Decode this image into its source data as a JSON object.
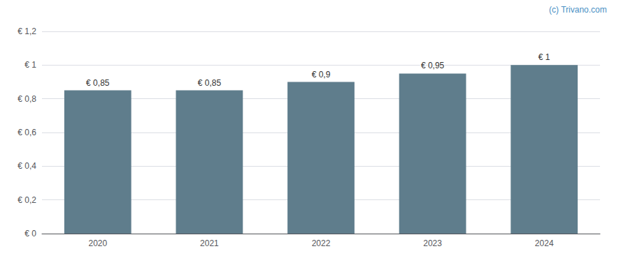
{
  "chart_data": {
    "type": "bar",
    "categories": [
      "2020",
      "2021",
      "2022",
      "2023",
      "2024"
    ],
    "values": [
      0.85,
      0.85,
      0.9,
      0.95,
      1.0
    ],
    "value_labels": [
      "€ 0,85",
      "€ 0,85",
      "€ 0,9",
      "€ 0,95",
      "€ 1"
    ],
    "data_labels": true,
    "color": "#5f7d8c",
    "ylim": [
      0,
      1.2
    ],
    "yticks": [
      {
        "value": 0,
        "label": "€ 0"
      },
      {
        "value": 0.2,
        "label": "€ 0,2"
      },
      {
        "value": 0.4,
        "label": "€ 0,4"
      },
      {
        "value": 0.6,
        "label": "€ 0,6"
      },
      {
        "value": 0.8,
        "label": "€ 0,8"
      },
      {
        "value": 1.0,
        "label": "€ 1"
      },
      {
        "value": 1.2,
        "label": "€ 1,2"
      }
    ],
    "grid": true,
    "annotations": [
      "(c) Trivano.com"
    ]
  }
}
